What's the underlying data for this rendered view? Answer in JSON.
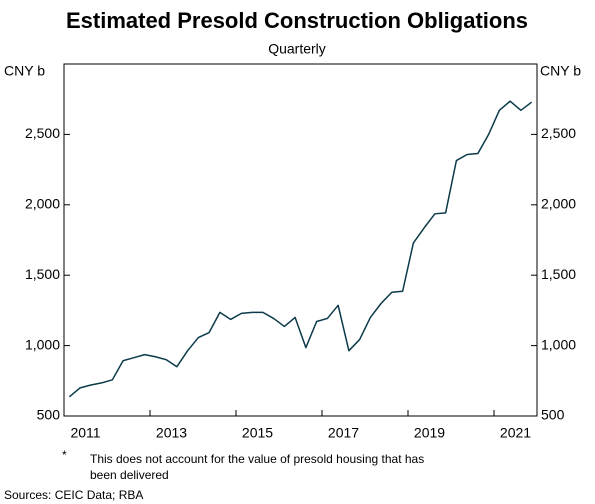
{
  "chart_data": {
    "type": "line",
    "title": "Estimated Presold Construction Obligations",
    "subtitle": "Quarterly",
    "y_label": "CNY b",
    "y2_label": "CNY b",
    "footnote_marker": "*",
    "footnote": [
      "This does not account for the value of presold housing that has",
      "been delivered"
    ],
    "sources": "Sources: CEIC Data; RBA",
    "xlim": [
      2011,
      2022
    ],
    "xticks": [
      2011,
      2013,
      2015,
      2017,
      2019,
      2021
    ],
    "ylim": [
      500,
      3000
    ],
    "yticks": [
      500,
      {
        "value": 1000,
        "label": "1,000"
      },
      {
        "value": 1500,
        "label": "1,500"
      },
      {
        "value": 2000,
        "label": "2,000"
      },
      {
        "value": 2500,
        "label": "2,500"
      }
    ],
    "y2lim": [
      500,
      3000
    ],
    "y2ticks": [
      500,
      {
        "value": 1000,
        "label": "1,000"
      },
      {
        "value": 1500,
        "label": "1,500"
      },
      {
        "value": 2000,
        "label": "2,000"
      },
      {
        "value": 2500,
        "label": "2,500"
      }
    ],
    "grid": false,
    "x": [
      2011.125,
      2011.375,
      2011.625,
      2011.875,
      2012.125,
      2012.375,
      2012.625,
      2012.875,
      2013.125,
      2013.375,
      2013.625,
      2013.875,
      2014.125,
      2014.375,
      2014.625,
      2014.875,
      2015.125,
      2015.375,
      2015.625,
      2015.875,
      2016.125,
      2016.375,
      2016.625,
      2016.875,
      2017.125,
      2017.375,
      2017.625,
      2017.875,
      2018.125,
      2018.375,
      2018.625,
      2018.875,
      2019.125,
      2019.375,
      2019.625,
      2019.875,
      2020.125,
      2020.375,
      2020.625,
      2020.875,
      2021.125,
      2021.375,
      2021.625,
      2021.875
    ],
    "series": [
      {
        "name": "Presold construction obligations",
        "color": "#0b3a4a",
        "values": [
          636,
          700,
          720,
          735,
          757,
          893,
          914,
          936,
          921,
          900,
          850,
          964,
          1057,
          1093,
          1236,
          1186,
          1229,
          1236,
          1236,
          1193,
          1136,
          1200,
          986,
          1171,
          1193,
          1286,
          964,
          1043,
          1200,
          1300,
          1379,
          1386,
          1729,
          1836,
          1936,
          1943,
          2314,
          2357,
          2364,
          2500,
          2671,
          2736,
          2671,
          2729
        ]
      }
    ]
  }
}
